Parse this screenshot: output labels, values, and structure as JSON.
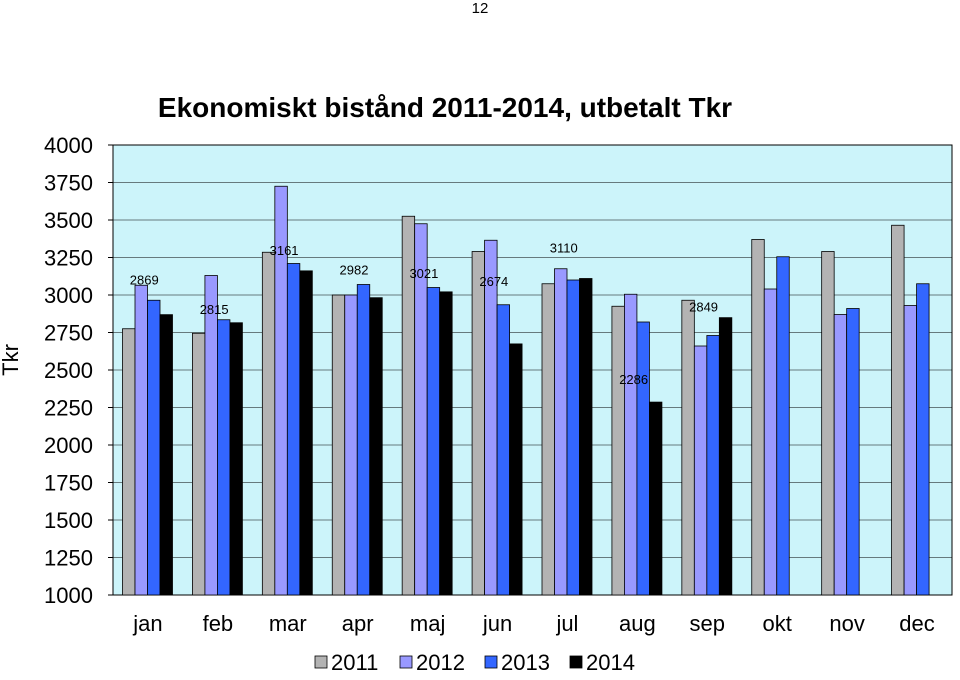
{
  "page_number": "12",
  "chart_data": {
    "type": "bar",
    "title": "Ekonomiskt bistånd 2011-2014, utbetalt Tkr",
    "ylabel": "Tkr",
    "xlabel": "",
    "ylim": [
      1000,
      4000
    ],
    "yticks": [
      "1000",
      "1250",
      "1500",
      "1750",
      "2000",
      "2250",
      "2500",
      "2750",
      "3000",
      "3250",
      "3500",
      "3750",
      "4000"
    ],
    "categories": [
      "jan",
      "feb",
      "mar",
      "apr",
      "maj",
      "jun",
      "jul",
      "aug",
      "sep",
      "okt",
      "nov",
      "dec"
    ],
    "series": [
      {
        "name": "2011",
        "color": "#b3b3b3",
        "values": [
          2775,
          2745,
          3285,
          3000,
          3525,
          3290,
          3075,
          2925,
          2965,
          3370,
          3290,
          3465
        ]
      },
      {
        "name": "2012",
        "color": "#9999ff",
        "values": [
          3065,
          3130,
          3725,
          3000,
          3475,
          3365,
          3175,
          3005,
          2660,
          3040,
          2870,
          2930
        ]
      },
      {
        "name": "2013",
        "color": "#3366ff",
        "values": [
          2965,
          2835,
          3210,
          3070,
          3050,
          2935,
          3100,
          2820,
          2730,
          3255,
          2910,
          3075
        ]
      },
      {
        "name": "2014",
        "color": "#000000",
        "values": [
          2869,
          2815,
          3161,
          2982,
          3021,
          2674,
          3110,
          2286,
          2849,
          null,
          null,
          null
        ]
      }
    ],
    "data_labels": [
      "2869",
      "2815",
      "3161",
      "2982",
      "3021",
      "2674",
      "3110",
      "2286",
      "2849"
    ],
    "plot_background": "#ccf4fa",
    "grid": true,
    "legend_position": "bottom"
  }
}
